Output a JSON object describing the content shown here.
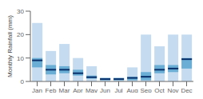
{
  "chart_data": {
    "type": "box",
    "categories": [
      "Jan",
      "Feb",
      "Mar",
      "Apr",
      "May",
      "Jun",
      "Jul",
      "Aug",
      "Sep",
      "Oct",
      "Nov",
      "Dec"
    ],
    "ylabel": "Monthly Rainfall (mm)",
    "ylim": [
      0,
      30
    ],
    "yticks": [
      0,
      10,
      20,
      30
    ],
    "series": [
      {
        "type": "range",
        "color": "#c5dcf0",
        "low": [
          0,
          0,
          0,
          0,
          0,
          0,
          0,
          0,
          0,
          0,
          0,
          0
        ],
        "high": [
          25,
          13,
          16,
          10,
          6.5,
          1.5,
          1.5,
          6,
          20,
          15,
          20,
          20
        ]
      },
      {
        "type": "range",
        "color": "#6aaed6",
        "low": [
          6,
          3,
          3.5,
          2.5,
          1.2,
          0.5,
          0.5,
          0.5,
          0.5,
          3.5,
          4,
          5.5
        ],
        "high": [
          10,
          7,
          6.5,
          5,
          2.5,
          1.5,
          1.5,
          2,
          4,
          7,
          7,
          10
        ]
      },
      {
        "type": "median",
        "color": "#08306b",
        "values": [
          9,
          5,
          5,
          3.5,
          1.8,
          1,
          1,
          1.5,
          2,
          5,
          5.5,
          9.5
        ]
      }
    ]
  }
}
